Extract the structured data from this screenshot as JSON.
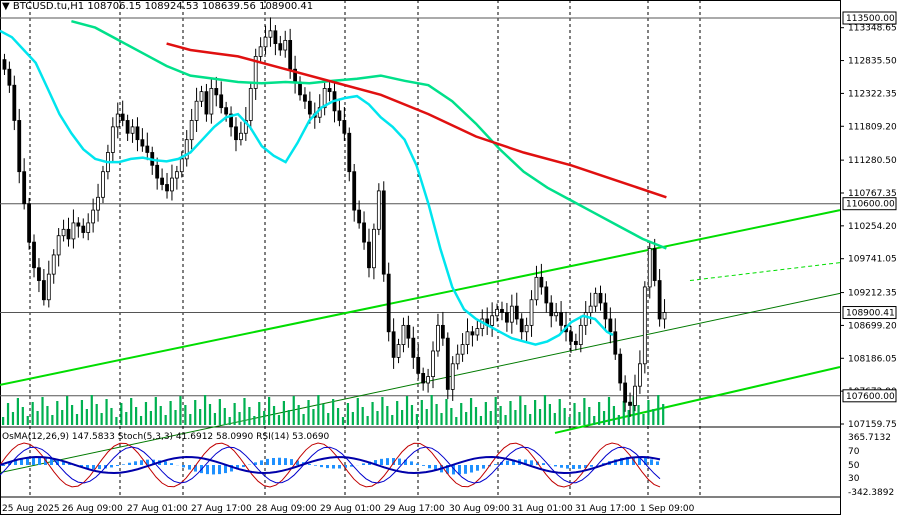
{
  "header": {
    "symbol_tf": "BTCUSD.tu,H1",
    "ohlc": "108706.15 108924.53 108639.56 108900.41"
  },
  "indicator_header": {
    "osma": "OsMA(12,26,9) 147.5833",
    "stoch": "Stoch(5,3,3) 41.6912 58.0990",
    "rsi": "RSI(14) 53.0690"
  },
  "colors": {
    "background": "#ffffff",
    "grid": "#000000",
    "candle": "#000000",
    "ma_fast": "#00e5ee",
    "ma_mid": "#00e08a",
    "ma_slow": "#e01010",
    "channel": "#00dd00",
    "volume": "#00b050",
    "osma": "#1e90ff",
    "stoch_main": "#c00000",
    "stoch_signal": "#0000cc",
    "rsi": "#0000aa",
    "level_label_bg": "#ffffff"
  },
  "chart_data": {
    "type": "candlestick",
    "symbol": "BTCUSD.tu",
    "timeframe": "H1",
    "y_range": [
      107159.75,
      113500.0
    ],
    "price_ticks": [
      "113348.65",
      "112835.50",
      "112322.35",
      "111809.20",
      "111280.50",
      "110767.35",
      "110254.20",
      "109741.05",
      "109212.35",
      "108699.20",
      "108186.05",
      "107672.90",
      "107159.75"
    ],
    "time_labels": [
      "25 Aug 2025",
      "26 Aug 09:00",
      "27 Aug 01:00",
      "27 Aug 17:00",
      "28 Aug 09:00",
      "29 Aug 01:00",
      "29 Aug 17:00",
      "30 Aug 09:00",
      "31 Aug 01:00",
      "31 Aug 17:00",
      "1 Sep 09:00"
    ],
    "levels": [
      {
        "label": "113500.00",
        "value": 113500.0
      },
      {
        "label": "110600.00",
        "value": 110600.0
      },
      {
        "label": "108900.41",
        "value": 108900.41
      },
      {
        "label": "107600.00",
        "value": 107600.0
      }
    ],
    "closes": [
      112700,
      112450,
      111900,
      111100,
      110600,
      110000,
      109600,
      109400,
      109100,
      109500,
      109800,
      110100,
      110200,
      110050,
      110300,
      110250,
      110150,
      110300,
      110500,
      110700,
      111100,
      111400,
      111800,
      112000,
      111900,
      111700,
      111800,
      111600,
      111500,
      111400,
      111200,
      111000,
      110900,
      110800,
      111000,
      111100,
      111300,
      111600,
      111900,
      112200,
      112350,
      112000,
      112400,
      112300,
      112100,
      112000,
      111800,
      111600,
      111700,
      111900,
      112400,
      112900,
      113050,
      113200,
      113300,
      113100,
      113000,
      113150,
      112700,
      112500,
      112300,
      112200,
      112000,
      111950,
      112100,
      112400,
      112350,
      112050,
      111900,
      111700,
      111100,
      110500,
      110300,
      110000,
      109600,
      110200,
      110800,
      109500,
      108600,
      108200,
      108400,
      108700,
      108500,
      108200,
      107950,
      107800,
      107900,
      108300,
      108700,
      108500,
      107700,
      108100,
      108250,
      108400,
      108600,
      108550,
      108650,
      108800,
      108700,
      108850,
      108950,
      108900,
      108750,
      109000,
      108800,
      108600,
      108700,
      109100,
      109450,
      109300,
      109050,
      108850,
      108900,
      108700,
      108600,
      108450,
      108400,
      108700,
      108900,
      109000,
      109200,
      109050,
      108800,
      108600,
      108250,
      107800,
      107500,
      107450,
      107750,
      108100,
      109300,
      109900,
      109400,
      108800,
      108900
    ],
    "ma_fast": [
      113300,
      113200,
      113000,
      112800,
      112400,
      112000,
      111700,
      111450,
      111300,
      111250,
      111250,
      111300,
      111320,
      111280,
      111260,
      111300,
      111400,
      111600,
      111800,
      111950,
      112000,
      111800,
      111500,
      111350,
      111250,
      111550,
      111900,
      112100,
      112200,
      112250,
      112280,
      112150,
      111950,
      111800,
      111600,
      111200,
      110600,
      109900,
      109300,
      108950,
      108800,
      108700,
      108600,
      108500,
      108450,
      108400,
      108450,
      108550,
      108750,
      108850,
      108800,
      108600,
      108550
    ],
    "ma_mid": [
      113450,
      113350,
      113150,
      112950,
      112750,
      112600,
      112550,
      112500,
      112480,
      112500,
      112480,
      112520,
      112550,
      112600,
      112520,
      112450,
      112200,
      111850,
      111450,
      111100,
      110850,
      110650,
      110450,
      110250,
      110050,
      109900
    ],
    "ma_slow": [
      113100,
      113000,
      112950,
      112900,
      112700,
      112500,
      112300,
      112000,
      111650,
      111400,
      111200,
      110950,
      110700
    ],
    "ma_fast_x": [
      0,
      10,
      20,
      30,
      40,
      50,
      60,
      70,
      80,
      90,
      100,
      110,
      120,
      130,
      140,
      150,
      160,
      170,
      180,
      190,
      200,
      210,
      220,
      230,
      240,
      250,
      260,
      270,
      280,
      290,
      300,
      310,
      320,
      330,
      340,
      350,
      360,
      370,
      380,
      390,
      400,
      410,
      420,
      430,
      440,
      450,
      460,
      470,
      480,
      490,
      500,
      510,
      515
    ],
    "ma_mid_x": [
      60,
      80,
      100,
      120,
      140,
      160,
      180,
      200,
      220,
      240,
      260,
      280,
      300,
      320,
      340,
      360,
      380,
      400,
      420,
      440,
      460,
      480,
      500,
      520,
      540,
      560
    ],
    "ma_slow_x": [
      140,
      160,
      180,
      200,
      240,
      280,
      320,
      360,
      400,
      440,
      480,
      520,
      560
    ],
    "channel": {
      "upper": [
        [
          0,
          107770
        ],
        [
          560,
          110500
        ]
      ],
      "middle": [
        [
          0,
          106400
        ],
        [
          560,
          109200
        ]
      ],
      "lower": [
        [
          370,
          107020
        ],
        [
          560,
          108050
        ]
      ],
      "extension": [
        [
          460,
          109400
        ],
        [
          560,
          109680
        ]
      ]
    }
  }
}
